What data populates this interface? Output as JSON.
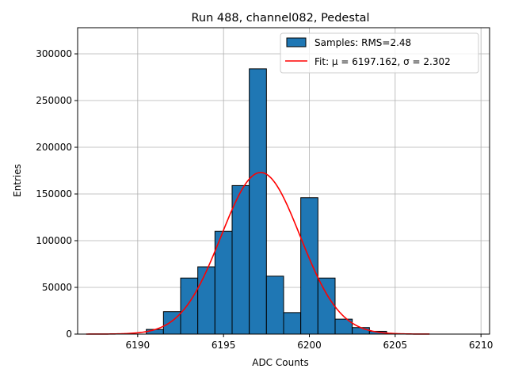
{
  "chart_data": {
    "type": "bar",
    "title": "Run 488, channel082, Pedestal",
    "xlabel": "ADC Counts",
    "ylabel": "Entries",
    "xlim": [
      6186.5,
      6210.5
    ],
    "ylim": [
      0,
      328000
    ],
    "xticks": [
      6190,
      6195,
      6200,
      6205,
      6210
    ],
    "yticks": [
      0,
      50000,
      100000,
      150000,
      200000,
      250000,
      300000
    ],
    "grid": true,
    "legend_position": "top-right",
    "bin_width": 1,
    "histogram": {
      "name": "Samples: RMS=2.48",
      "color": "#1f77b4",
      "bins": [
        {
          "x": 6191,
          "value": 5000
        },
        {
          "x": 6192,
          "value": 24000
        },
        {
          "x": 6193,
          "value": 60000
        },
        {
          "x": 6194,
          "value": 72000
        },
        {
          "x": 6195,
          "value": 110000
        },
        {
          "x": 6196,
          "value": 159000
        },
        {
          "x": 6197,
          "value": 284000
        },
        {
          "x": 6198,
          "value": 62000
        },
        {
          "x": 6199,
          "value": 23000
        },
        {
          "x": 6200,
          "value": 146000
        },
        {
          "x": 6201,
          "value": 60000
        },
        {
          "x": 6202,
          "value": 16000
        },
        {
          "x": 6203,
          "value": 7000
        },
        {
          "x": 6204,
          "value": 3000
        }
      ]
    },
    "fit": {
      "name": "Fit: μ = 6197.162, σ = 2.302",
      "color": "#ff0000",
      "mu": 6197.162,
      "sigma": 2.302,
      "amplitude": 173000,
      "x_range": [
        6187,
        6207
      ]
    }
  }
}
